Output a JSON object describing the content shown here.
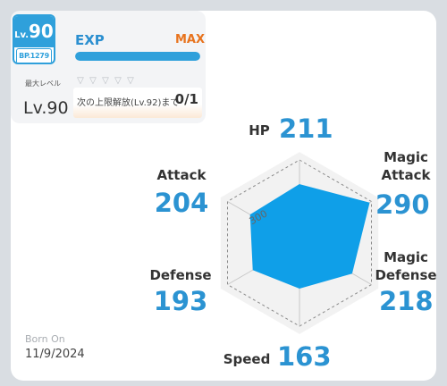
{
  "colors": {
    "accent": "#2fa0db",
    "max": "#e8731d",
    "radar_fill": "#0f9fe8"
  },
  "level_badge": {
    "prefix": "Lv.",
    "value": "90",
    "bp": "BP.1279"
  },
  "exp": {
    "label": "EXP",
    "status": "MAX",
    "progress": 1.0
  },
  "limit": {
    "max_level_label": "最大レベル",
    "level_text": "Lv.90",
    "unlock_text": "次の上限解放(Lv.92)まで",
    "unlock_count": "0/1",
    "diamonds": [
      "gem-icon",
      "gem-icon",
      "gem-icon",
      "gem-icon",
      "gem-icon"
    ]
  },
  "stats": {
    "hp": {
      "label": "HP",
      "value": "211"
    },
    "magic_attack": {
      "label": "Magic Attack",
      "value": "290"
    },
    "magic_defense": {
      "label": "Magic Defense",
      "value": "218"
    },
    "speed": {
      "label": "Speed",
      "value": "163"
    },
    "defense": {
      "label": "Defense",
      "value": "193"
    },
    "attack": {
      "label": "Attack",
      "value": "204"
    }
  },
  "chart_data": {
    "type": "radar",
    "axes": [
      "HP",
      "Magic Attack",
      "Magic Defense",
      "Speed",
      "Defense",
      "Attack"
    ],
    "values": [
      211,
      290,
      218,
      163,
      193,
      204
    ],
    "max": 300,
    "tick_label": "300"
  },
  "born": {
    "label": "Born On",
    "date": "11/9/2024"
  }
}
